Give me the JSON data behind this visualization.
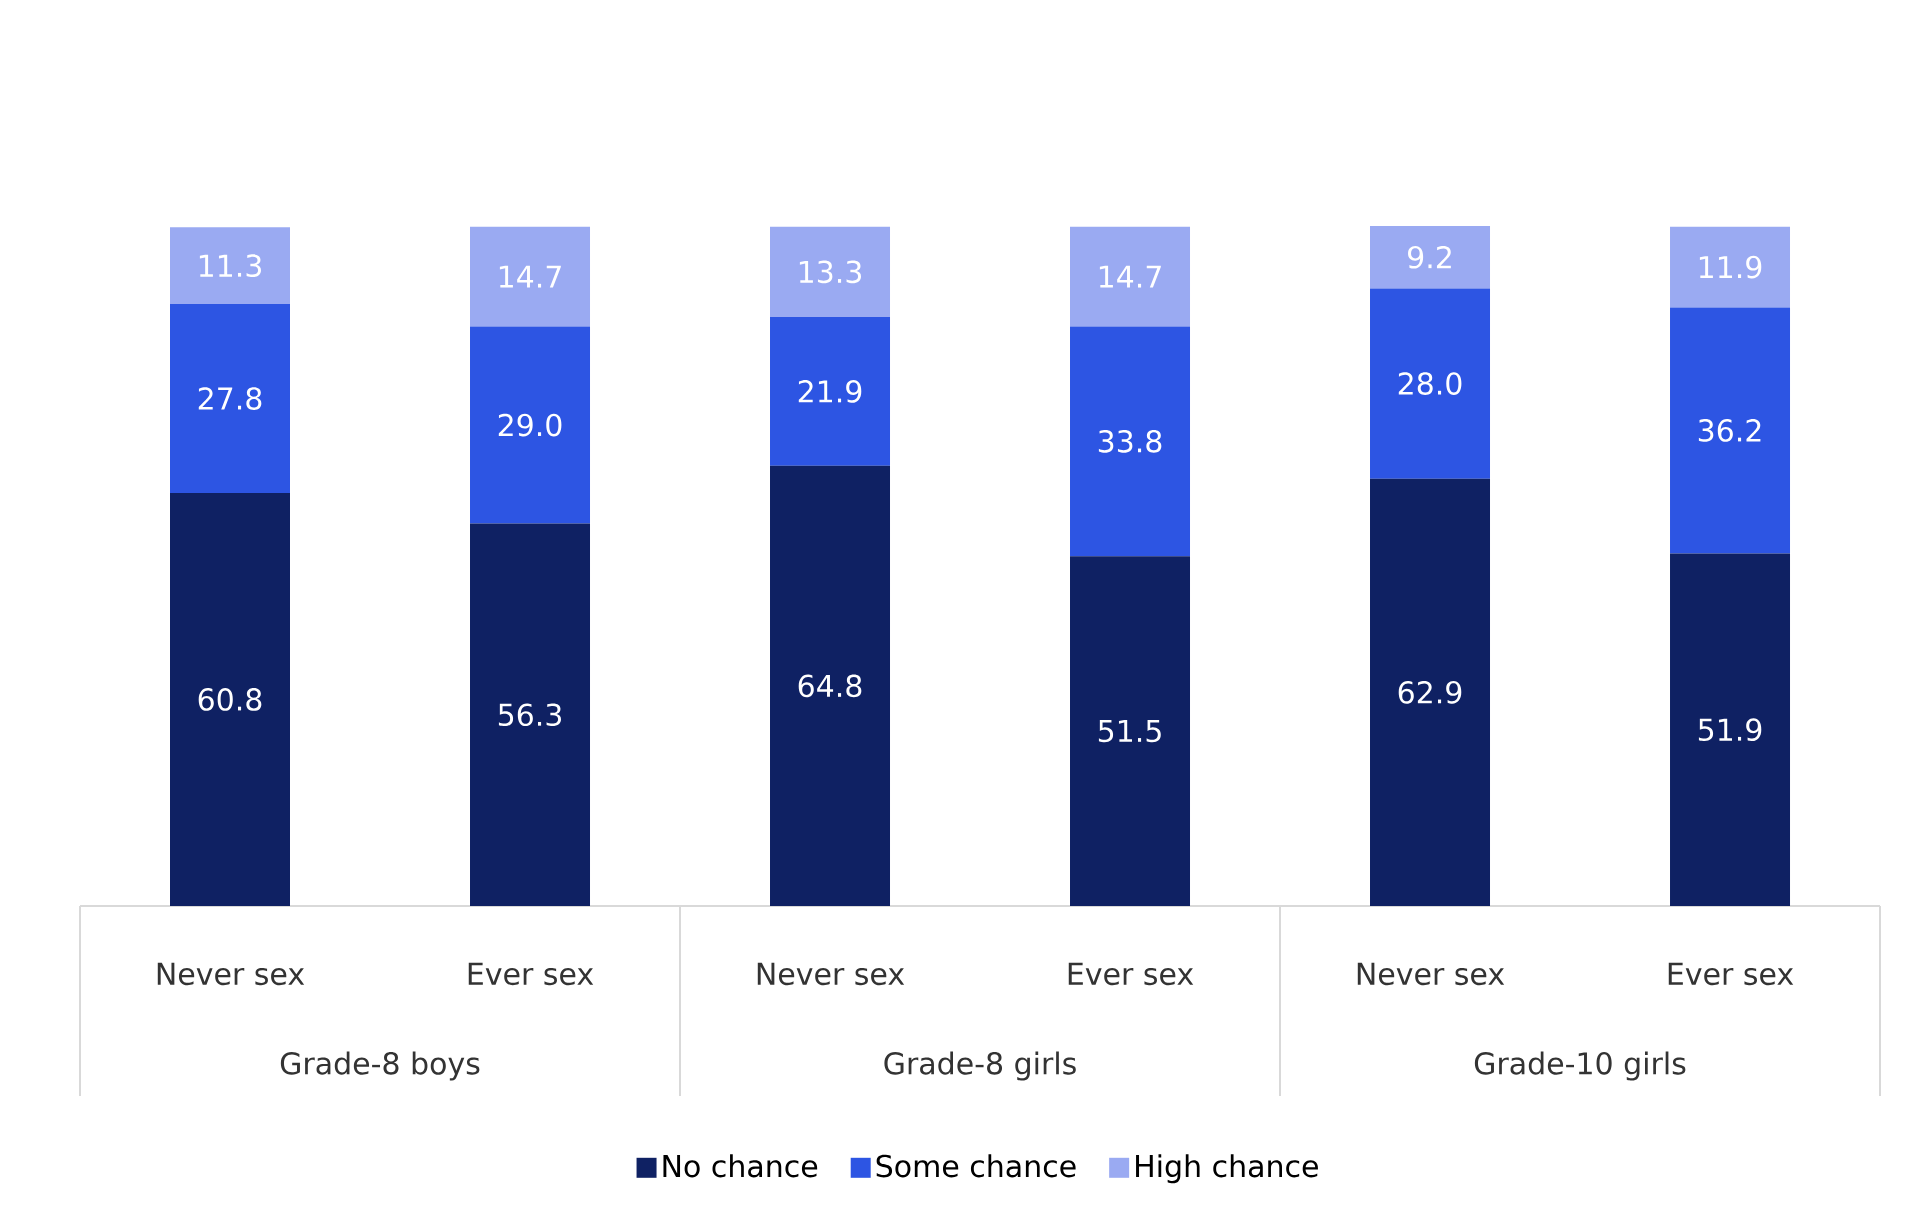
{
  "chart_data": {
    "type": "bar",
    "stacked": true,
    "legend": "bottom",
    "tick_labels": "x",
    "categories": [
      "Never sex",
      "Ever sex",
      "Never sex",
      "Ever sex",
      "Never sex",
      "Ever sex"
    ],
    "annotations": [
      "Grade-8 boys",
      "Grade-8 girls",
      "Grade-10 girls"
    ],
    "series": [
      {
        "name": "No chance",
        "color": "#0f2163",
        "values": [
          60.8,
          56.3,
          64.8,
          51.5,
          62.9,
          51.9
        ],
        "value_labels": [
          "60.8",
          "56.3",
          "64.8",
          "51.5",
          "62.9",
          "51.9"
        ]
      },
      {
        "name": "Some chance",
        "color": "#2d55e3",
        "values": [
          27.8,
          29.0,
          21.9,
          33.8,
          28.0,
          36.2
        ],
        "value_labels": [
          "27.8",
          "29.0",
          "21.9",
          "33.8",
          "28.0",
          "36.2"
        ]
      },
      {
        "name": "High chance",
        "color": "#9aaaf2",
        "values": [
          11.3,
          14.7,
          13.3,
          14.7,
          9.2,
          11.9
        ],
        "value_labels": [
          "11.3",
          "14.7",
          "13.3",
          "14.7",
          "9.2",
          "11.9"
        ]
      }
    ]
  }
}
